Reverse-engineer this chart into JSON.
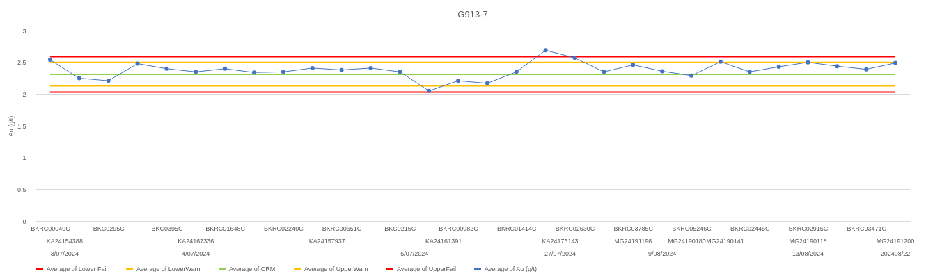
{
  "chart_data": {
    "type": "line",
    "title": "G913-7",
    "ylabel": "Au (g/t)",
    "categories": [
      "BKRC00040C",
      null,
      "BKC0295C",
      null,
      "BKC0395C",
      null,
      "BKRC01648C",
      null,
      "BKRC02240C",
      null,
      "BKRC00651C",
      null,
      "BKC0215C",
      null,
      "BKRC00982C",
      null,
      "BKRC01414C",
      null,
      "BKRC02630C",
      null,
      "BKRC03785C",
      null,
      "BKRC05246C",
      null,
      "BKRC02445C",
      null,
      "BKRC02915C",
      null,
      "BKRC03471C",
      null
    ],
    "series": [
      {
        "name": "Average of Lower Fail",
        "color": "#ff0000",
        "marker": "none",
        "values": [
          2.03,
          2.03,
          2.03,
          2.03,
          2.03,
          2.03,
          2.03,
          2.03,
          2.03,
          2.03,
          2.03,
          2.03,
          2.03,
          2.03,
          2.03,
          2.03,
          2.03,
          2.03,
          2.03,
          2.03,
          2.03,
          2.03,
          2.03,
          2.03,
          2.03,
          2.03,
          2.03,
          2.03,
          2.03,
          2.03
        ]
      },
      {
        "name": "Average of LowerWarn",
        "color": "#ffc000",
        "marker": "none",
        "values": [
          2.13,
          2.13,
          2.13,
          2.13,
          2.13,
          2.13,
          2.13,
          2.13,
          2.13,
          2.13,
          2.13,
          2.13,
          2.13,
          2.13,
          2.13,
          2.13,
          2.13,
          2.13,
          2.13,
          2.13,
          2.13,
          2.13,
          2.13,
          2.13,
          2.13,
          2.13,
          2.13,
          2.13,
          2.13,
          2.13
        ]
      },
      {
        "name": "Average of CRM",
        "color": "#92d050",
        "marker": "none",
        "values": [
          2.31,
          2.31,
          2.31,
          2.31,
          2.31,
          2.31,
          2.31,
          2.31,
          2.31,
          2.31,
          2.31,
          2.31,
          2.31,
          2.31,
          2.31,
          2.31,
          2.31,
          2.31,
          2.31,
          2.31,
          2.31,
          2.31,
          2.31,
          2.31,
          2.31,
          2.31,
          2.31,
          2.31,
          2.31,
          2.31
        ]
      },
      {
        "name": "Average of UpperWarn",
        "color": "#ffc000",
        "marker": "none",
        "values": [
          2.5,
          2.5,
          2.5,
          2.5,
          2.5,
          2.5,
          2.5,
          2.5,
          2.5,
          2.5,
          2.5,
          2.5,
          2.5,
          2.5,
          2.5,
          2.5,
          2.5,
          2.5,
          2.5,
          2.5,
          2.5,
          2.5,
          2.5,
          2.5,
          2.5,
          2.5,
          2.5,
          2.5,
          2.5,
          2.5
        ]
      },
      {
        "name": "Average of UpperFail",
        "color": "#ff0000",
        "marker": "none",
        "values": [
          2.59,
          2.59,
          2.59,
          2.59,
          2.59,
          2.59,
          2.59,
          2.59,
          2.59,
          2.59,
          2.59,
          2.59,
          2.59,
          2.59,
          2.59,
          2.59,
          2.59,
          2.59,
          2.59,
          2.59,
          2.59,
          2.59,
          2.59,
          2.59,
          2.59,
          2.59,
          2.59,
          2.59,
          2.59,
          2.59
        ]
      },
      {
        "name": "Average of Au (g/t)",
        "color": "#4472c4",
        "marker": "circle",
        "values": [
          2.54,
          2.25,
          2.21,
          2.48,
          2.4,
          2.35,
          2.4,
          2.34,
          2.35,
          2.41,
          2.38,
          2.41,
          2.35,
          2.05,
          2.21,
          2.17,
          2.35,
          2.69,
          2.57,
          2.35,
          2.46,
          2.36,
          2.29,
          2.51,
          2.35,
          2.43,
          2.5,
          2.44,
          2.39,
          2.49
        ]
      }
    ],
    "annotations": [
      "KA24154388",
      "KA24167336",
      "KA24157937",
      "KA24161391",
      "KA24176143",
      "MG24191196",
      "MG24190180",
      "MG24190141",
      "MG24190118",
      "MG24191200",
      "3/07/2024",
      "4/07/2024",
      "5/07/2024",
      "27/07/2024",
      "9/08/2024",
      "13/08/2024",
      "202408/22"
    ],
    "ylim": [
      0,
      3
    ],
    "yticks": [
      0,
      0.5,
      1,
      1.5,
      2,
      2.5,
      3
    ],
    "grid": "y",
    "legend": "bottom"
  }
}
